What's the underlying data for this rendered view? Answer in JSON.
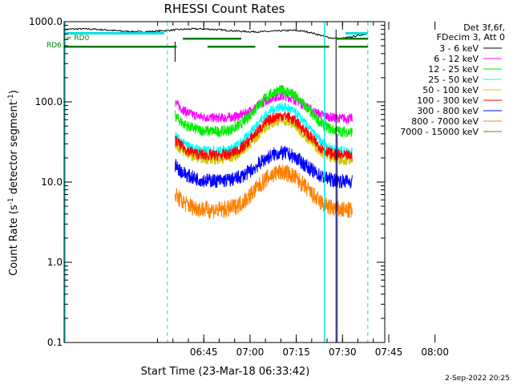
{
  "chart_data": {
    "type": "line",
    "title": "RHESSI Count Rates",
    "xlabel": "Start Time (23-Mar-18 06:33:42)",
    "ylabel_main": "Count Rate (s",
    "ylabel_sup1": "-1",
    "ylabel_mid": " detector segment",
    "ylabel_sup2": "-1",
    "ylabel_end": ")",
    "yscale": "log",
    "ylim": [
      0.1,
      1000
    ],
    "y_ticks": [
      "0.1",
      "1.0",
      "10.0",
      "100.0",
      "1000.0"
    ],
    "x_range_min": [
      -34,
      70
    ],
    "x_ticks": [
      "06:45",
      "07:00",
      "07:15",
      "07:30",
      "07:45",
      "08:00"
    ],
    "x_tick_minutes": [
      11.3,
      26.3,
      41.3,
      56.3,
      71.3,
      86.3
    ],
    "date_stamp": "2-Sep-2022 20:25",
    "legend_header": [
      "Det 3f,6f,",
      "FDecim 3, Att 0"
    ],
    "flag_labels": {
      "rd0": "= RD0",
      "rd6": "RD6"
    },
    "series": [
      {
        "name": "3 - 6 keV",
        "color": "#000000"
      },
      {
        "name": "6 - 12 keV",
        "color": "#ff00ff"
      },
      {
        "name": "12 - 25 keV",
        "color": "#00ee00"
      },
      {
        "name": "25 - 50 keV",
        "color": "#00ffff"
      },
      {
        "name": "50 - 100 keV",
        "color": "#cccc00"
      },
      {
        "name": "100 - 300 keV",
        "color": "#ff0000"
      },
      {
        "name": "300 - 800 keV",
        "color": "#0000ff"
      },
      {
        "name": "800 - 7000 keV",
        "color": "#ff8000"
      },
      {
        "name": "7000 - 15000 keV",
        "color": "#808000"
      }
    ]
  }
}
